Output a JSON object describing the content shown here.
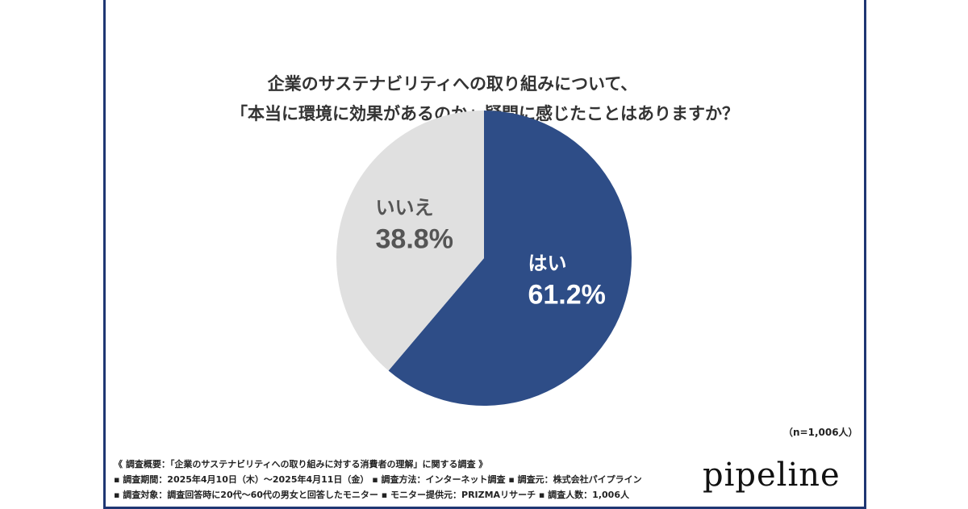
{
  "title_lines": [
    "企業のサステナビリティへの取り組みについて、",
    "「本当に環境に効果があるのか」疑問に感じたことはありますか？"
  ],
  "chart_data": {
    "type": "pie",
    "title": "企業のサステナビリティへの取り組みについて、「本当に環境に効果があるのか」疑問に感じたことはありますか？",
    "slices": [
      {
        "label": "はい",
        "value": 61.2,
        "display": "61.2%",
        "color": "#2e4d87",
        "text_color": "#ffffff"
      },
      {
        "label": "いいえ",
        "value": 38.8,
        "display": "38.8%",
        "color": "#e0e0e0",
        "text_color": "#555555"
      }
    ],
    "start": "top, clockwise"
  },
  "sample_size": "（n=1,006人）",
  "notes": [
    "《 調査概要：「企業のサステナビリティへの取り組みに対する消費者の理解」に関する調査 》",
    "▪ 調査期間：2025年4月10日（木）～2025年4月11日（金） ▪ 調査方法：インターネット調査 ▪ 調査元：株式会社パイプライン",
    "▪ 調査対象：調査回答時に20代～60代の男女と回答したモニター ▪ モニター提供元：PRIZMAリサーチ ▪ 調査人数：1,006人"
  ],
  "logo": "pipeline",
  "colors": {
    "border": "#1f3773"
  }
}
